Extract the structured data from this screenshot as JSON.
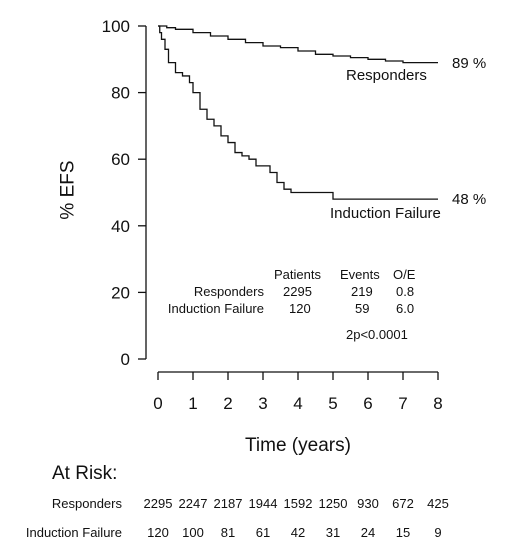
{
  "chart_data": {
    "type": "line",
    "title": "",
    "xlabel": "Time (years)",
    "ylabel": "% EFS",
    "xlim": [
      0,
      8
    ],
    "ylim": [
      0,
      100
    ],
    "x_ticks": [
      "0",
      "1",
      "2",
      "3",
      "4",
      "5",
      "6",
      "7",
      "8"
    ],
    "y_ticks": [
      "0",
      "20",
      "40",
      "60",
      "80",
      "100"
    ],
    "grid": false,
    "series": [
      {
        "name": "Responders",
        "end_label": "89 %",
        "x": [
          0,
          0.25,
          0.5,
          1,
          1.5,
          2,
          2.5,
          3,
          3.5,
          4,
          4.5,
          5,
          5.5,
          6,
          6.5,
          7,
          7.5,
          8
        ],
        "y": [
          100,
          99.5,
          99,
          98,
          97,
          96,
          95,
          94,
          93.5,
          92.5,
          91.5,
          91,
          90.5,
          90,
          89.5,
          89,
          89,
          89
        ]
      },
      {
        "name": "Induction Failure",
        "end_label": "48 %",
        "x": [
          0,
          0.05,
          0.1,
          0.2,
          0.3,
          0.5,
          0.7,
          0.9,
          1.0,
          1.2,
          1.4,
          1.6,
          1.8,
          2.0,
          2.2,
          2.4,
          2.6,
          2.8,
          3.0,
          3.2,
          3.4,
          3.6,
          3.8,
          4.0,
          4.5,
          4.9,
          5.0,
          6.0,
          7.0,
          7.6,
          8.0
        ],
        "y": [
          100,
          98,
          96,
          93,
          89,
          86,
          85,
          83,
          80,
          75,
          72,
          70,
          67,
          65,
          62,
          61,
          60,
          58,
          58,
          56,
          53,
          51,
          50,
          50,
          50,
          50,
          48,
          48,
          48,
          48,
          48
        ]
      }
    ],
    "summary_table": {
      "headers": [
        "Patients",
        "Events",
        "O/E"
      ],
      "rows": [
        {
          "label": "Responders",
          "patients": "2295",
          "events": "219",
          "oe": "0.8"
        },
        {
          "label": "Induction Failure",
          "patients": "120",
          "events": "59",
          "oe": "6.0"
        }
      ],
      "pvalue": "2p<0.0001"
    },
    "at_risk": {
      "title": "At Risk:",
      "rows": [
        {
          "label": "Responders",
          "values": [
            "2295",
            "2247",
            "2187",
            "1944",
            "1592",
            "1250",
            "930",
            "672",
            "425"
          ]
        },
        {
          "label": "Induction Failure",
          "values": [
            "120",
            "100",
            "81",
            "61",
            "42",
            "31",
            "24",
            "15",
            "9"
          ]
        }
      ]
    }
  }
}
